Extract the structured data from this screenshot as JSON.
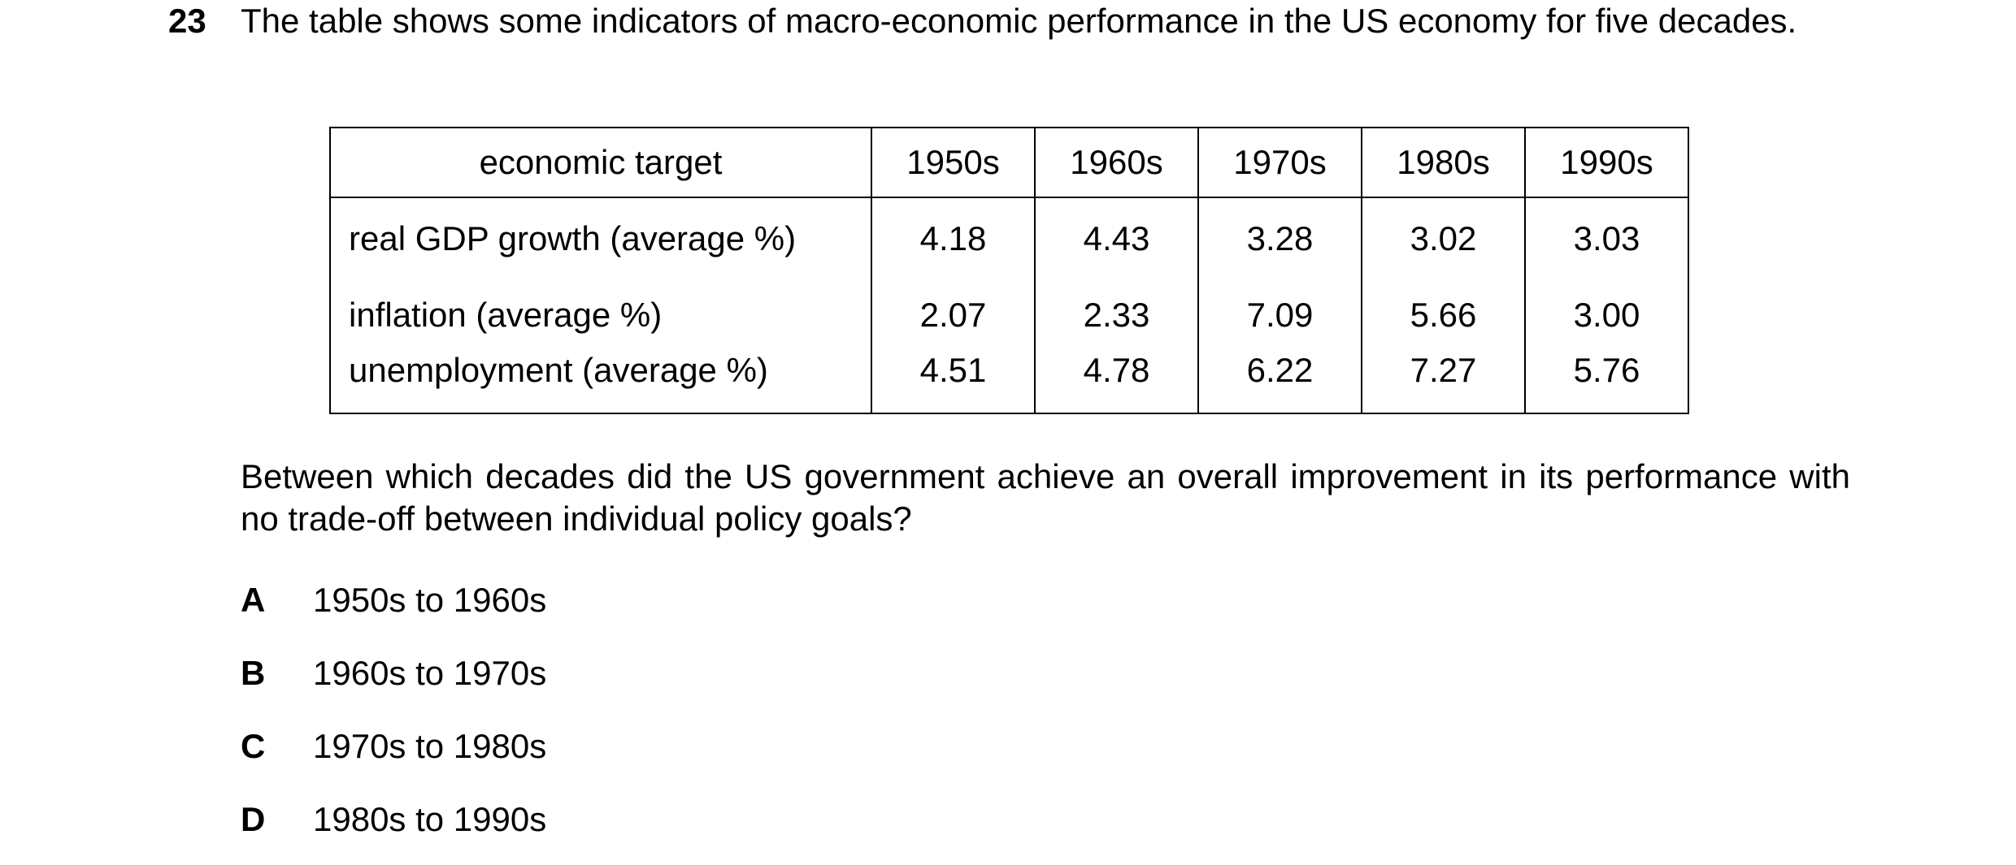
{
  "question": {
    "number": "23",
    "stem": "The table shows some indicators of macro-economic performance in the US economy for five decades.",
    "prompt": "Between which decades did the US government achieve an overall improvement in its performance with no trade-off between individual policy goals?"
  },
  "table": {
    "header": {
      "label": "economic target",
      "decades": [
        "1950s",
        "1960s",
        "1970s",
        "1980s",
        "1990s"
      ]
    },
    "rows": [
      {
        "label": "real GDP growth (average %)",
        "values": [
          "4.18",
          "4.43",
          "3.28",
          "3.02",
          "3.03"
        ]
      },
      {
        "label": "inflation (average %)",
        "values": [
          "2.07",
          "2.33",
          "7.09",
          "5.66",
          "3.00"
        ]
      },
      {
        "label": "unemployment (average %)",
        "values": [
          "4.51",
          "4.78",
          "6.22",
          "7.27",
          "5.76"
        ]
      }
    ]
  },
  "options": [
    {
      "letter": "A",
      "text": "1950s to 1960s"
    },
    {
      "letter": "B",
      "text": "1960s to 1970s"
    },
    {
      "letter": "C",
      "text": "1970s to 1980s"
    },
    {
      "letter": "D",
      "text": "1980s to 1990s"
    }
  ]
}
